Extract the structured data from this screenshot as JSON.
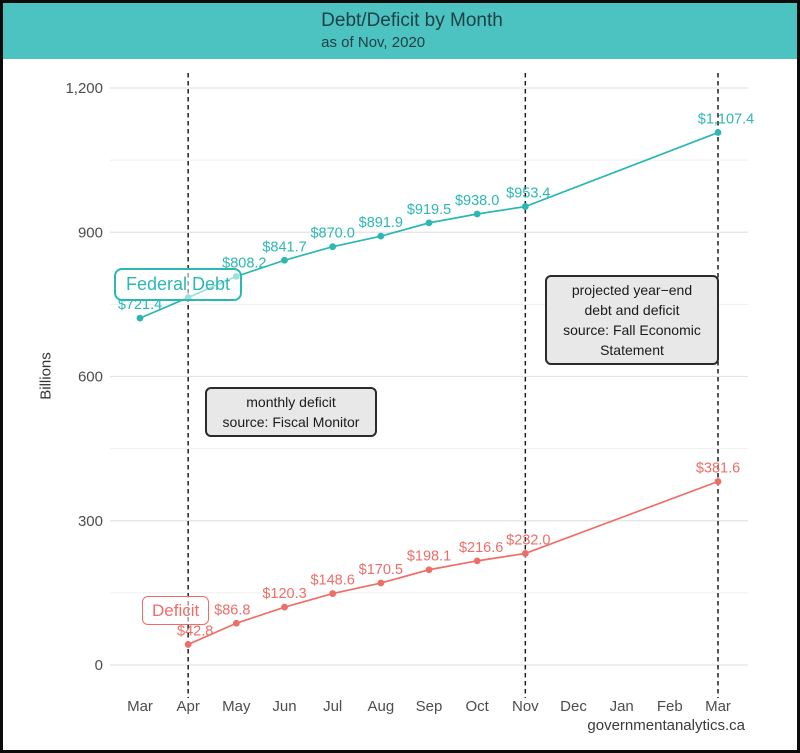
{
  "header": {
    "title": "Debt/Deficit by Month",
    "subtitle": "as of Nov, 2020"
  },
  "footer": {
    "watermark": "governmentanalytics.ca"
  },
  "colors": {
    "header_bg": "#4cc3c0",
    "title_text": "#1d4147",
    "debt_series": "#2bb8b4",
    "deficit_series": "#ee6e67",
    "axis_text": "#4d4d4d",
    "grid_major": "#e3e3e3",
    "grid_minor": "#efefef",
    "vline": "#1f1f1f",
    "annotation_bg": "#e8e8e8",
    "annotation_border": "#2b2b2b"
  },
  "y_axis": {
    "label": "Billions",
    "ticks": [
      0,
      300,
      600,
      900,
      1200
    ],
    "tick_labels": [
      "0",
      "300",
      "600",
      "900",
      "1,200"
    ],
    "minor_ticks": [
      150,
      450,
      750,
      1050
    ]
  },
  "x_axis": {
    "labels": [
      "Mar",
      "Apr",
      "May",
      "Jun",
      "Jul",
      "Aug",
      "Sep",
      "Oct",
      "Nov",
      "Dec",
      "Jan",
      "Feb",
      "Mar"
    ]
  },
  "chart_data": {
    "type": "line",
    "title": "Debt/Deficit by Month",
    "subtitle": "as of Nov, 2020",
    "ylabel": "Billions",
    "ylim": [
      0,
      1200
    ],
    "grid": "horizontal-only",
    "legend": "none (inline series name labels)",
    "categories": [
      "Mar",
      "Apr",
      "May",
      "Jun",
      "Jul",
      "Aug",
      "Sep",
      "Oct",
      "Nov",
      "Dec",
      "Jan",
      "Feb",
      "Mar"
    ],
    "series": [
      {
        "name": "Federal Debt",
        "color": "#2bb8b4",
        "points": [
          {
            "x": "Mar",
            "xi": 0,
            "value": 721.4,
            "label": "$721.4"
          },
          {
            "x": "Apr",
            "xi": 1,
            "value": 764.2,
            "label": "",
            "note": "label hidden behind 'Federal Debt' name box"
          },
          {
            "x": "May",
            "xi": 2,
            "value": 808.2,
            "label": "$808.2"
          },
          {
            "x": "Jun",
            "xi": 3,
            "value": 841.7,
            "label": "$841.7"
          },
          {
            "x": "Jul",
            "xi": 4,
            "value": 870.0,
            "label": "$870.0"
          },
          {
            "x": "Aug",
            "xi": 5,
            "value": 891.9,
            "label": "$891.9"
          },
          {
            "x": "Sep",
            "xi": 6,
            "value": 919.5,
            "label": "$919.5"
          },
          {
            "x": "Oct",
            "xi": 7,
            "value": 938.0,
            "label": "$938.0"
          },
          {
            "x": "Nov",
            "xi": 8,
            "value": 953.4,
            "label": "$953.4"
          },
          {
            "x": "Mar",
            "xi": 12,
            "value": 1107.4,
            "label": "$1,107.4"
          }
        ]
      },
      {
        "name": "Deficit",
        "color": "#ee6e67",
        "points": [
          {
            "x": "Apr",
            "xi": 1,
            "value": 42.8,
            "label": "$42.8"
          },
          {
            "x": "May",
            "xi": 2,
            "value": 86.8,
            "label": "$86.8"
          },
          {
            "x": "Jun",
            "xi": 3,
            "value": 120.3,
            "label": "$120.3"
          },
          {
            "x": "Jul",
            "xi": 4,
            "value": 148.6,
            "label": "$148.6"
          },
          {
            "x": "Aug",
            "xi": 5,
            "value": 170.5,
            "label": "$170.5"
          },
          {
            "x": "Sep",
            "xi": 6,
            "value": 198.1,
            "label": "$198.1"
          },
          {
            "x": "Oct",
            "xi": 7,
            "value": 216.6,
            "label": "$216.6"
          },
          {
            "x": "Nov",
            "xi": 8,
            "value": 232.0,
            "label": "$232.0"
          },
          {
            "x": "Mar",
            "xi": 12,
            "value": 381.6,
            "label": "$381.6"
          }
        ]
      }
    ],
    "vlines": {
      "style": "dashed",
      "months": [
        "Apr",
        "Nov",
        "Mar"
      ],
      "x_indices": [
        1,
        8,
        12
      ]
    },
    "annotations": [
      {
        "id": "monthly",
        "lines": [
          "monthly deficit",
          "source: Fiscal Monitor"
        ]
      },
      {
        "id": "projected",
        "lines": [
          "projected year−end",
          "debt and deficit",
          "source: Fall Economic",
          "Statement"
        ]
      }
    ]
  }
}
